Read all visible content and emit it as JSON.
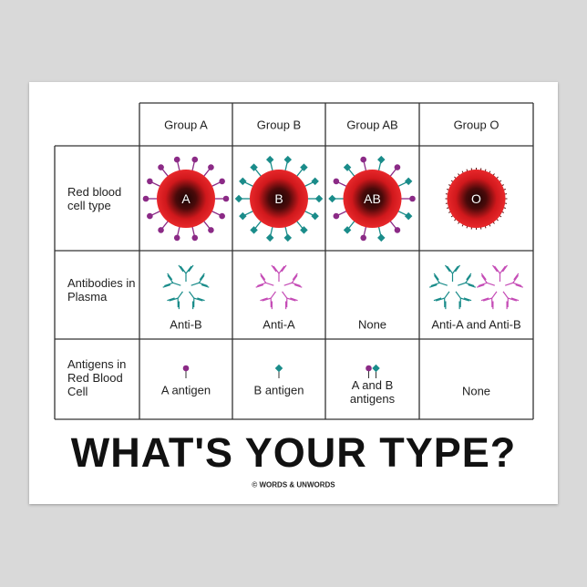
{
  "title": "WHAT'S YOUR TYPE?",
  "credit": "© WORDS & UNWORDS",
  "table": {
    "columns": [
      "Group A",
      "Group B",
      "Group AB",
      "Group O"
    ],
    "rows": [
      {
        "label": "Red blood cell type",
        "cells": [
          "A",
          "B",
          "AB",
          "O"
        ]
      },
      {
        "label": "Antibodies in Plasma",
        "cells": [
          "Anti-B",
          "Anti-A",
          "None",
          "Anti-A and Anti-B"
        ]
      },
      {
        "label": "Antigens in Red Blood Cell",
        "cells": [
          "A antigen",
          "B antigen",
          "A and B antigens",
          "None"
        ]
      }
    ]
  }
}
